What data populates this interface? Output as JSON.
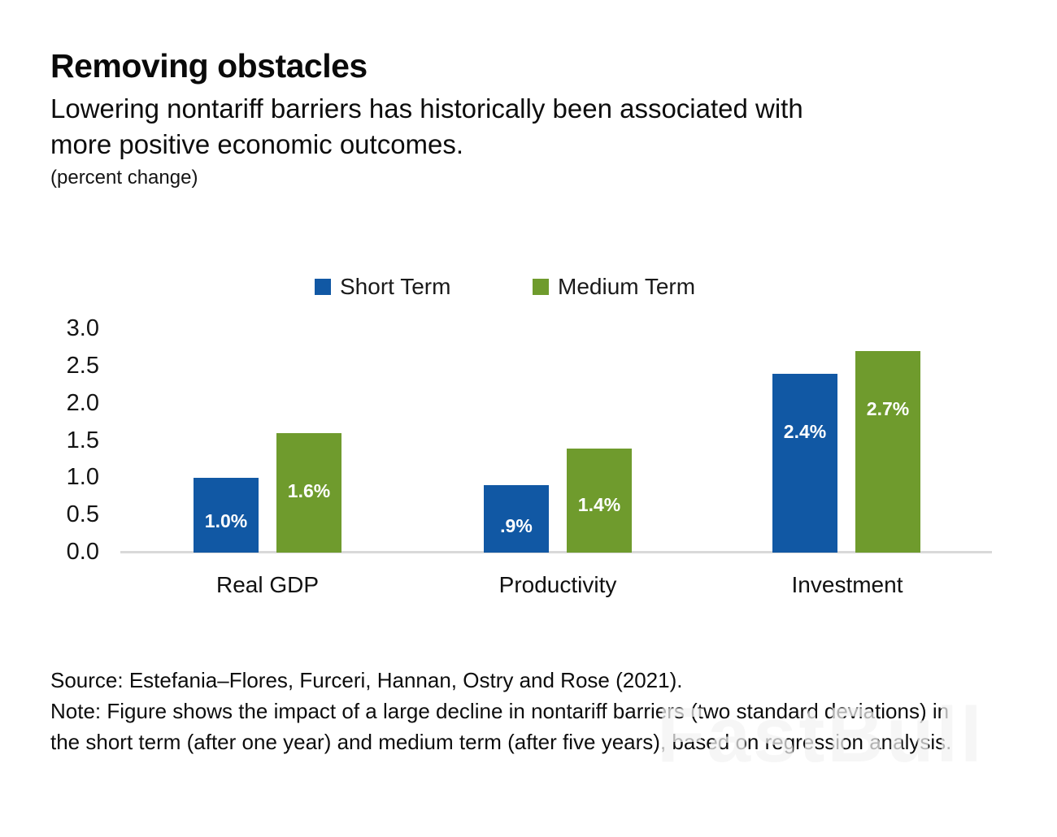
{
  "header": {
    "title": "Removing obstacles",
    "subtitle_line1": "Lowering nontariff barriers has historically been associated with",
    "subtitle_line2": "more positive economic outcomes.",
    "unit_label": "(percent change)"
  },
  "chart_data": {
    "type": "bar",
    "categories": [
      "Real GDP",
      "Productivity",
      "Investment"
    ],
    "series": [
      {
        "name": "Short Term",
        "color": "#1158a4",
        "values": [
          1.0,
          0.9,
          2.4
        ],
        "labels": [
          "1.0%",
          ".9%",
          "2.4%"
        ]
      },
      {
        "name": "Medium Term",
        "color": "#6f9b2d",
        "values": [
          1.6,
          1.4,
          2.7
        ],
        "labels": [
          "1.6%",
          "1.4%",
          "2.7%"
        ]
      }
    ],
    "ylim": [
      0.0,
      3.0
    ],
    "yticks": [
      "3.0",
      "2.5",
      "2.0",
      "1.5",
      "1.0",
      "0.5",
      "0.0"
    ],
    "grid": false,
    "legend_position": "top",
    "axis_line_color": "#d9d9d9"
  },
  "footer": {
    "source": "Source: Estefania–Flores, Furceri, Hannan, Ostry and Rose (2021).",
    "note_line1": "Note: Figure shows the impact of a large decline in nontariff barriers (two standard deviations) in",
    "note_line2": "the short term (after one year) and medium term (after five years), based on regression analysis."
  },
  "watermark": "FastBull"
}
